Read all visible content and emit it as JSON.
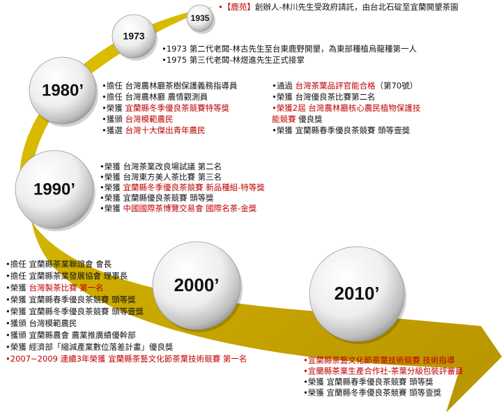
{
  "milestones": [
    {
      "label": "1935",
      "columns": [
        [
          [
            {
              "text": "•【鹿苑】",
              "color": "#c00000"
            },
            {
              "text": "創辦人-林川先生受政府請託，由台北石碇至宜蘭開墾茶園"
            }
          ]
        ]
      ]
    },
    {
      "label": "1973",
      "columns": [
        [
          [
            {
              "text": "•1973 第二代老闆-林古先生至台東鹿野開墾，為東部種植烏龍種第一人"
            }
          ],
          [
            {
              "text": "•1975 第三代老闆-林煜進先生正式接掌"
            }
          ]
        ]
      ]
    },
    {
      "label": "1980’",
      "columns": [
        [
          [
            {
              "text": "•擔任 台灣農林廳茶樹保護義務指導員"
            }
          ],
          [
            {
              "text": "•擔任 台灣農林廳 農情觀測員"
            }
          ],
          [
            {
              "text": "•榮獲 "
            },
            {
              "text": "宜蘭縣冬季優良茶競賽特等獎",
              "color": "#c00000"
            }
          ],
          [
            {
              "text": "•獲頒 "
            },
            {
              "text": "台灣模範農民",
              "color": "#c00000"
            }
          ],
          [
            {
              "text": "•獲選 "
            },
            {
              "text": "台灣十大傑出青年農民",
              "color": "#c00000"
            }
          ]
        ],
        [
          [
            {
              "text": "•通過 "
            },
            {
              "text": "台灣茶葉品評官能合格",
              "color": "#c00000"
            },
            {
              "text": "（第70號）"
            }
          ],
          [
            {
              "text": "•榮獲 台灣優良茶比賽第二名"
            }
          ],
          [
            {
              "text": "•榮獲2屆 台灣農林廳核心農民植物保護技",
              "color": "#c00000"
            }
          ],
          [
            {
              "text": "能競賽",
              "color": "#c00000"
            },
            {
              "text": " 優良獎"
            }
          ],
          [
            {
              "text": "•榮獲 宜蘭縣春季優良茶競賽 頭等壹獎"
            }
          ]
        ]
      ]
    },
    {
      "label": "1990’",
      "columns": [
        [
          [
            {
              "text": "•榮獲 台灣茶業改良場試議 第二名"
            }
          ],
          [
            {
              "text": "•榮獲 台灣東方美人茶比賽 第三名"
            }
          ],
          [
            {
              "text": "•榮獲 "
            },
            {
              "text": "宜蘭縣冬季優良茶競賽 新品種組-特等獎",
              "color": "#c00000"
            }
          ],
          [
            {
              "text": "•榮獲 宜蘭縣優良茶競賽 頭等獎"
            }
          ],
          [
            {
              "text": "•榮獲 "
            },
            {
              "text": "中國國際茶博覽交易會 國際名茶-金獎",
              "color": "#c00000"
            }
          ]
        ]
      ]
    },
    {
      "label": "2000’",
      "columns": [
        [
          [
            {
              "text": "•擔任 宜蘭縣茶業聯誼會 會長"
            }
          ],
          [
            {
              "text": "•擔任 宜蘭縣茶業發展協會 理事長"
            }
          ],
          [
            {
              "text": "•榮獲 "
            },
            {
              "text": "台灣製茶比賽 第一名",
              "color": "#c00000"
            }
          ],
          [
            {
              "text": "•榮獲 宜蘭縣春季優良茶競賽 頭等獎"
            }
          ],
          [
            {
              "text": "•榮獲 宜蘭縣冬季優良茶競賽 頭等壹獎"
            }
          ],
          [
            {
              "text": "•獲頒 台灣模範農民"
            }
          ],
          [
            {
              "text": "•獲頒 宜蘭縣農會 農業推廣績優幹部"
            }
          ],
          [
            {
              "text": "•榮獲 經濟部「縮減產業數位落差計畫」優良獎"
            }
          ],
          [
            {
              "text": "•2007~2009 連續3年榮獲 宜蘭縣茶藝文化節茶葉技術競賽 第一名",
              "color": "#c00000"
            }
          ]
        ]
      ]
    },
    {
      "label": "2010’",
      "columns": [
        [
          [
            {
              "text": "•宜蘭縣茶藝文化節茶葉技術競賽 技術指導",
              "color": "#c00000"
            }
          ],
          [
            {
              "text": "•宜蘭縣茶業生產合作社-茶葉分級包裝評審員",
              "color": "#c00000"
            }
          ],
          [
            {
              "text": "•榮獲 宜蘭縣春季優良茶競賽 頭等獎"
            }
          ],
          [
            {
              "text": "•榮獲 宜蘭縣冬季優良茶競賽 頭等壹獎"
            }
          ]
        ]
      ]
    }
  ]
}
